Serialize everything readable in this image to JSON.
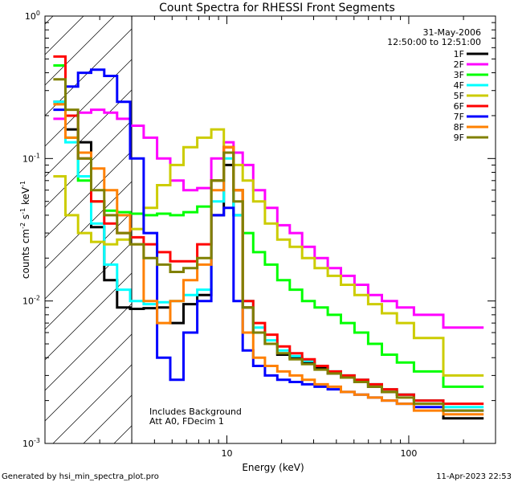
{
  "chart_data": {
    "type": "line",
    "title": "Count Spectra for RHESSI Front Segments",
    "xlabel": "Energy (keV)",
    "ylabel_main": "counts cm",
    "ylabel_exp1": "-2",
    "ylabel_mid": " s",
    "ylabel_exp2": "-1",
    "ylabel_end": " keV",
    "ylabel_exp3": "-1",
    "xscale": "log",
    "yscale": "log",
    "xlim": [
      1.0,
      300.0
    ],
    "ylim": [
      0.001,
      1.0
    ],
    "x_ticks": [
      {
        "value": 10,
        "label": "10"
      },
      {
        "value": 100,
        "label": "100"
      }
    ],
    "y_ticks": [
      {
        "value": 0.001,
        "base": "10",
        "exp": "-3"
      },
      {
        "value": 0.01,
        "base": "10",
        "exp": "-2"
      },
      {
        "value": 0.1,
        "base": "10",
        "exp": "-1"
      },
      {
        "value": 1.0,
        "base": "10",
        "exp": "0"
      }
    ],
    "hatch_region_xmax": 3.0,
    "date": "31-May-2006",
    "time_range": "12:50:00 to 12:51:00",
    "annotation_line1": "Includes Background",
    "annotation_line2": "Att A0, FDecim 1",
    "footer_left": "Generated by hsi_min_spectra_plot.pro",
    "footer_right": "11-Apr-2023 22:53",
    "series": [
      {
        "name": "1F",
        "color": "#000000",
        "values": [
          0.25,
          0.16,
          0.13,
          0.033,
          0.014,
          0.009,
          0.0088,
          0.0089,
          0.009,
          0.007,
          0.0095,
          0.011,
          0.04,
          0.09,
          0.04,
          0.009,
          0.006,
          0.005,
          0.0042,
          0.004,
          0.0037,
          0.0034,
          0.0031,
          0.0029,
          0.0027,
          0.0025,
          0.0023,
          0.0022,
          0.002,
          0.0015
        ]
      },
      {
        "name": "2F",
        "color": "#ff00ff",
        "values": [
          0.19,
          0.2,
          0.21,
          0.22,
          0.21,
          0.19,
          0.17,
          0.14,
          0.1,
          0.07,
          0.06,
          0.062,
          0.1,
          0.13,
          0.11,
          0.09,
          0.06,
          0.045,
          0.034,
          0.03,
          0.024,
          0.02,
          0.017,
          0.015,
          0.013,
          0.011,
          0.01,
          0.009,
          0.008,
          0.0065
        ]
      },
      {
        "name": "3F",
        "color": "#00ff00",
        "values": [
          0.45,
          0.14,
          0.07,
          0.05,
          0.043,
          0.042,
          0.041,
          0.04,
          0.041,
          0.04,
          0.042,
          0.046,
          0.07,
          0.11,
          0.06,
          0.03,
          0.022,
          0.018,
          0.014,
          0.012,
          0.01,
          0.009,
          0.008,
          0.007,
          0.006,
          0.005,
          0.0042,
          0.0037,
          0.0032,
          0.0025
        ]
      },
      {
        "name": "4F",
        "color": "#00ffff",
        "values": [
          0.25,
          0.13,
          0.075,
          0.035,
          0.018,
          0.012,
          0.01,
          0.0095,
          0.0098,
          0.01,
          0.011,
          0.012,
          0.05,
          0.1,
          0.04,
          0.01,
          0.0065,
          0.0053,
          0.0045,
          0.0041,
          0.0038,
          0.0035,
          0.0032,
          0.003,
          0.0028,
          0.0026,
          0.0024,
          0.0022,
          0.002,
          0.0018
        ]
      },
      {
        "name": "5F",
        "color": "#cccc00",
        "values": [
          0.075,
          0.04,
          0.03,
          0.026,
          0.025,
          0.027,
          0.032,
          0.045,
          0.065,
          0.09,
          0.12,
          0.14,
          0.16,
          0.12,
          0.09,
          0.07,
          0.05,
          0.035,
          0.027,
          0.024,
          0.02,
          0.017,
          0.015,
          0.013,
          0.011,
          0.0095,
          0.0082,
          0.007,
          0.0055,
          0.003
        ]
      },
      {
        "name": "6F",
        "color": "#ff0000",
        "values": [
          0.52,
          0.2,
          0.1,
          0.05,
          0.035,
          0.03,
          0.028,
          0.025,
          0.022,
          0.019,
          0.019,
          0.025,
          0.07,
          0.12,
          0.06,
          0.01,
          0.007,
          0.0058,
          0.0048,
          0.0043,
          0.0039,
          0.0035,
          0.0032,
          0.003,
          0.0028,
          0.0026,
          0.0024,
          0.0022,
          0.002,
          0.0019
        ]
      },
      {
        "name": "7F",
        "color": "#0000ff",
        "values": [
          0.22,
          0.32,
          0.4,
          0.42,
          0.38,
          0.25,
          0.1,
          0.03,
          0.004,
          0.0028,
          0.006,
          0.01,
          0.04,
          0.045,
          0.01,
          0.0045,
          0.0035,
          0.003,
          0.0028,
          0.0027,
          0.0026,
          0.0025,
          0.0024,
          0.0023,
          0.0022,
          0.0021,
          0.002,
          0.0019,
          0.0018,
          0.0017
        ]
      },
      {
        "name": "8F",
        "color": "#ff8000",
        "values": [
          0.24,
          0.14,
          0.11,
          0.085,
          0.06,
          0.04,
          0.025,
          0.01,
          0.007,
          0.01,
          0.014,
          0.018,
          0.06,
          0.12,
          0.06,
          0.006,
          0.004,
          0.0035,
          0.0032,
          0.003,
          0.0028,
          0.0026,
          0.0025,
          0.0023,
          0.0022,
          0.0021,
          0.002,
          0.0019,
          0.0017,
          0.0016
        ]
      },
      {
        "name": "9F",
        "color": "#808000",
        "values": [
          0.36,
          0.22,
          0.1,
          0.06,
          0.04,
          0.03,
          0.025,
          0.02,
          0.018,
          0.016,
          0.017,
          0.02,
          0.07,
          0.11,
          0.05,
          0.009,
          0.006,
          0.005,
          0.0043,
          0.0039,
          0.0036,
          0.0033,
          0.0031,
          0.0029,
          0.0027,
          0.0025,
          0.0023,
          0.0021,
          0.0019,
          0.0017
        ]
      }
    ],
    "x": [
      1.2,
      1.4,
      1.65,
      1.95,
      2.3,
      2.7,
      3.2,
      3.8,
      4.5,
      5.3,
      6.3,
      7.5,
      9.0,
      10.3,
      11.5,
      13.0,
      15.0,
      17.5,
      20.5,
      24.0,
      28.0,
      33.0,
      39.0,
      46.0,
      55.0,
      65.0,
      78.0,
      95.0,
      120.0,
      200.0
    ]
  }
}
